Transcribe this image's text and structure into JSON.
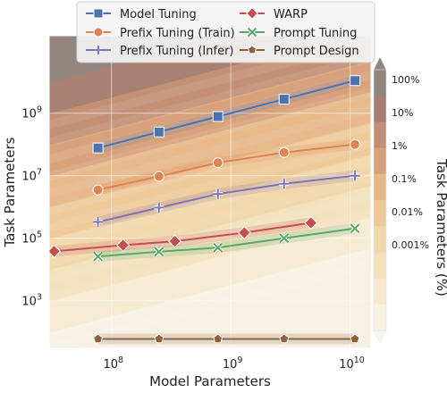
{
  "chart_data": {
    "type": "line",
    "xlabel": "Model Parameters",
    "ylabel": "Task Parameters",
    "x_scale": "log",
    "y_scale": "log",
    "xlim": [
      30000000,
      15000000000
    ],
    "ylim": [
      30,
      300000000000
    ],
    "x_ticks": [
      {
        "value": 100000000,
        "base": "10",
        "exp": "8"
      },
      {
        "value": 1000000000,
        "base": "10",
        "exp": "9"
      },
      {
        "value": 10000000000,
        "base": "10",
        "exp": "10"
      }
    ],
    "y_ticks": [
      {
        "value": 1000,
        "base": "10",
        "exp": "3"
      },
      {
        "value": 100000,
        "base": "10",
        "exp": "5"
      },
      {
        "value": 10000000,
        "base": "10",
        "exp": "7"
      },
      {
        "value": 1000000000,
        "base": "10",
        "exp": "9"
      }
    ],
    "grid": true,
    "legend_position": "top",
    "background_description": "filled contour of task parameters as percentage of model parameters",
    "colorbar": {
      "label": "Task Parameters (%)",
      "ticks": [
        "100%",
        "10%",
        "1%",
        "0.1%",
        "0.01%",
        "0.001%"
      ],
      "extend": "both",
      "colors": [
        "#8f8680",
        "#a57f73",
        "#c28f76",
        "#d6a17a",
        "#e5b789",
        "#edc998",
        "#f1d6a8",
        "#f3e1bb",
        "#f5ead0",
        "#f7f1e4"
      ]
    },
    "series": [
      {
        "name": "Model Tuning",
        "color": "#4c72b0",
        "marker": "square",
        "x": [
          77000000,
          250000000,
          780000000,
          2800000000,
          11000000000
        ],
        "y": [
          77000000,
          250000000,
          780000000,
          2800000000,
          11000000000
        ]
      },
      {
        "name": "Prefix Tuning (Train)",
        "color": "#dd8452",
        "marker": "circle",
        "x": [
          77000000,
          250000000,
          780000000,
          2800000000,
          11000000000
        ],
        "y": [
          3500000,
          9500000,
          26000000,
          55000000,
          100000000
        ]
      },
      {
        "name": "Prefix Tuning (Infer)",
        "color": "#8172b3",
        "marker": "plus",
        "x": [
          77000000,
          250000000,
          780000000,
          2800000000,
          11000000000
        ],
        "y": [
          330000,
          950000,
          2600000,
          5500000,
          10000000
        ]
      },
      {
        "name": "WARP",
        "color": "#c44e52",
        "marker": "diamond",
        "x": [
          33000000,
          125000000,
          340000000,
          1300000000,
          4700000000
        ],
        "y": [
          38000,
          60000,
          80000,
          150000,
          310000
        ]
      },
      {
        "name": "Prompt Tuning",
        "color": "#55a868",
        "marker": "x",
        "x": [
          77000000,
          250000000,
          780000000,
          2800000000,
          11000000000
        ],
        "y": [
          26000,
          37000,
          50000,
          100000,
          205000
        ]
      },
      {
        "name": "Prompt Design",
        "color": "#8c613c",
        "marker": "pentagon",
        "x": [
          77000000,
          250000000,
          780000000,
          2800000000,
          11000000000
        ],
        "y": [
          60,
          60,
          60,
          60,
          60
        ]
      }
    ]
  }
}
